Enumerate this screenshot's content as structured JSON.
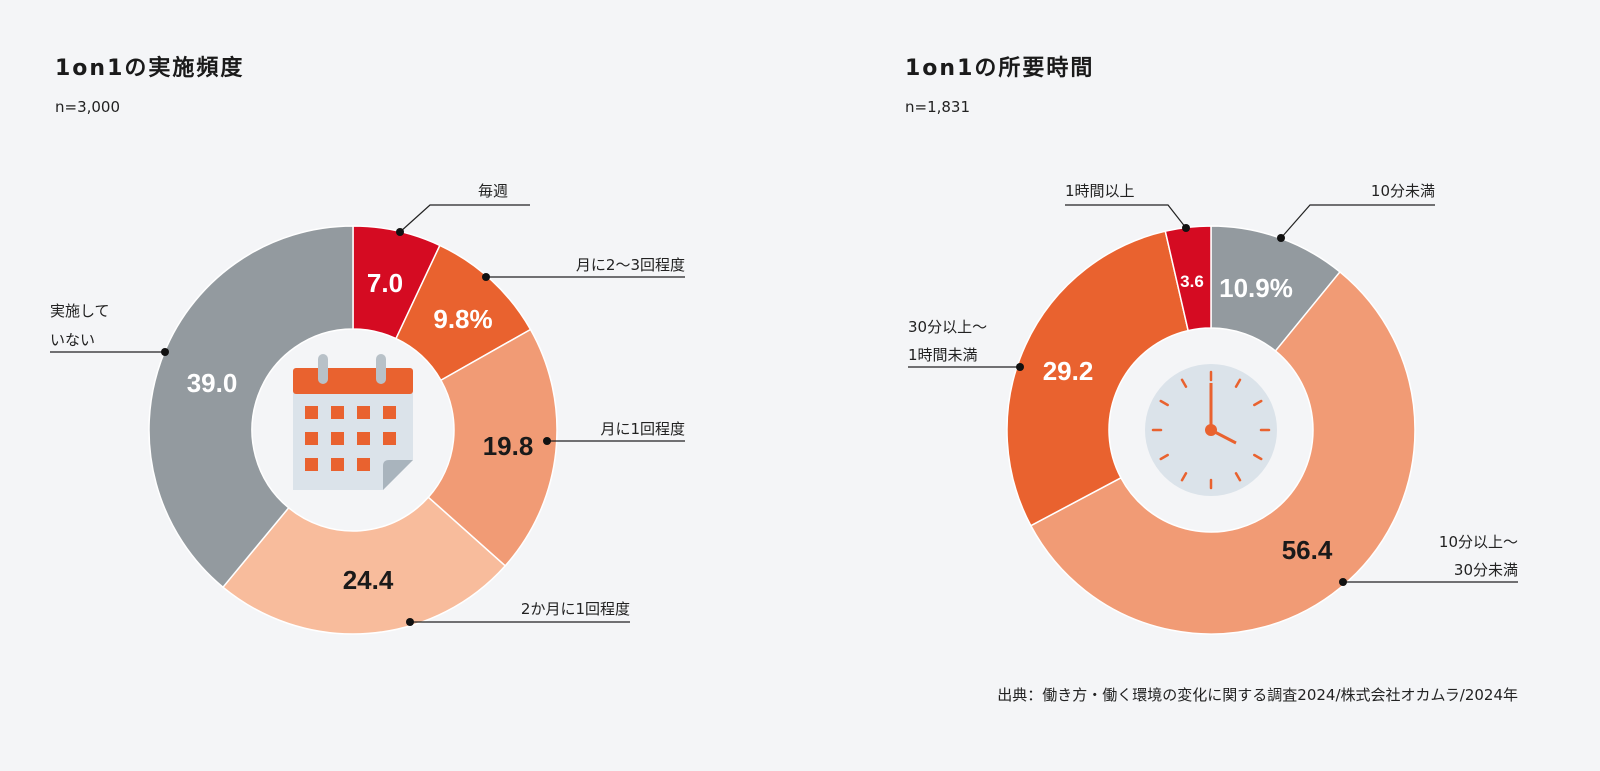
{
  "chart_data": [
    {
      "type": "pie",
      "title": "1on1の実施頻度",
      "subtitle": "n=3,000",
      "categories": [
        "毎週",
        "月に2〜3回程度",
        "月に1回程度",
        "2か月に1回程度",
        "実施していない"
      ],
      "values": [
        7.0,
        9.8,
        19.8,
        24.4,
        39.0
      ],
      "value_labels": [
        "7.0",
        "9.8%",
        "19.8",
        "24.4",
        "39.0"
      ],
      "colors": [
        "#d50b22",
        "#e9622f",
        "#f19b75",
        "#f8bc9c",
        "#939a9f"
      ],
      "label_colors": [
        "#ffffff",
        "#ffffff",
        "#1a1a1a",
        "#1a1a1a",
        "#ffffff"
      ],
      "style": "donut",
      "center_icon": "calendar-icon"
    },
    {
      "type": "pie",
      "title": "1on1の所要時間",
      "subtitle": "n=1,831",
      "categories": [
        "10分未満",
        "10分以上〜30分未満",
        "30分以上〜1時間未満",
        "1時間以上"
      ],
      "category_lines": [
        [
          "10分未満"
        ],
        [
          "10分以上〜",
          "30分未満"
        ],
        [
          "30分以上〜",
          "1時間未満"
        ],
        [
          "1時間以上"
        ]
      ],
      "values": [
        10.9,
        56.4,
        29.2,
        3.6
      ],
      "value_labels": [
        "10.9%",
        "56.4",
        "29.2",
        "3.6"
      ],
      "colors": [
        "#939a9f",
        "#f19b75",
        "#e9622f",
        "#d50b22"
      ],
      "label_colors": [
        "#ffffff",
        "#1a1a1a",
        "#ffffff",
        "#ffffff"
      ],
      "style": "donut",
      "center_icon": "clock-icon"
    }
  ],
  "left_label_lines": {
    "not_done": [
      "実施して",
      "いない"
    ]
  },
  "source": "出典：働き方・働く環境の変化に関する調査2024/株式会社オカムラ/2024年"
}
